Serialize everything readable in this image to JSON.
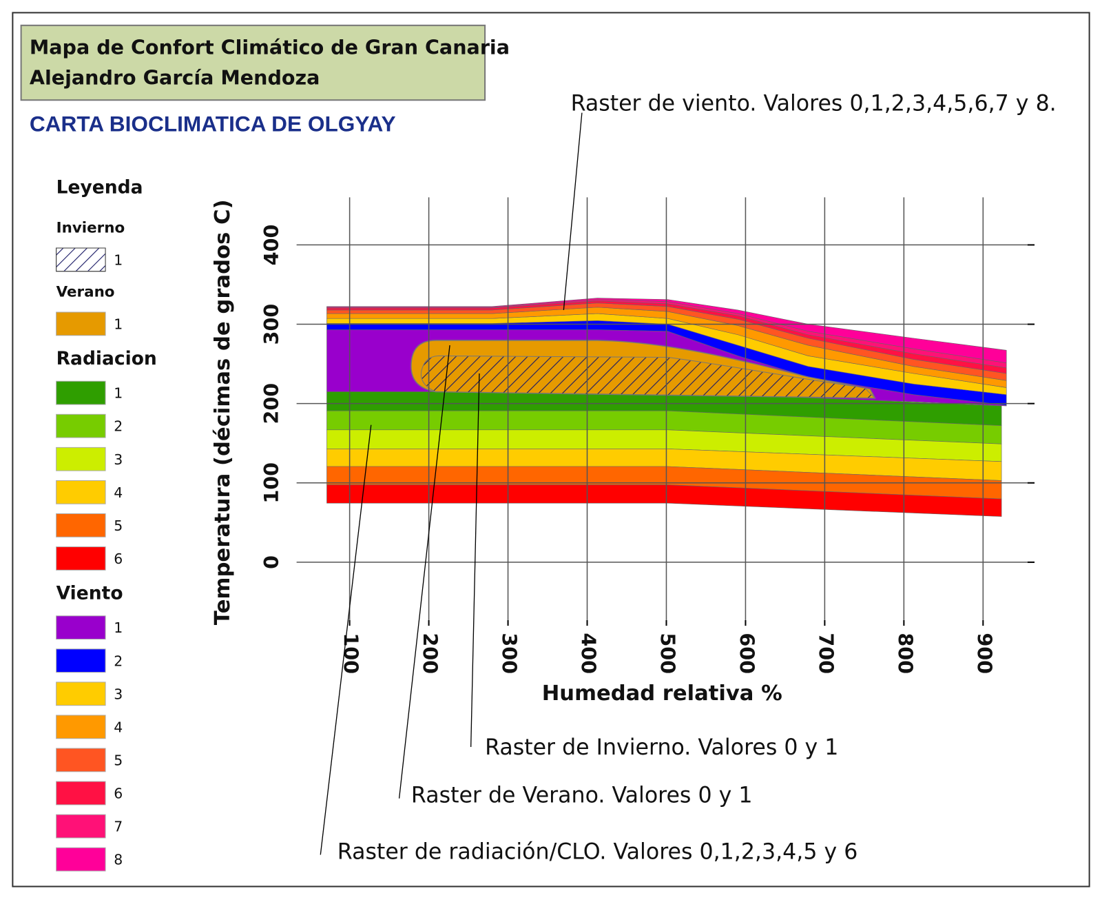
{
  "chart_data": {
    "type": "bioclimatic",
    "header": [
      "Mapa de Confort Climático de Gran Canaria",
      "Alejandro García Mendoza"
    ],
    "title": "CARTA BIOCLIMATICA DE OLGYAY",
    "x_label": "Humedad relativa %",
    "y_label": "Temperatura (décimas de grados C)",
    "xlim": [
      33,
      965
    ],
    "ylim": [
      -73,
      460
    ],
    "xticks": [
      100,
      200,
      300,
      400,
      500,
      600,
      700,
      800,
      900
    ],
    "yticks": [
      0,
      100,
      200,
      300,
      400
    ],
    "grid": true,
    "legend": {
      "title": "Leyenda",
      "groups": [
        {
          "name": "Invierno",
          "items": [
            {
              "label": "1",
              "color": "#1a1a66",
              "hatch": true
            }
          ]
        },
        {
          "name": "Verano",
          "items": [
            {
              "label": "1",
              "color": "#e69a00"
            }
          ]
        },
        {
          "name": "Radiacion",
          "items": [
            {
              "label": "1",
              "color": "#2f9e00"
            },
            {
              "label": "2",
              "color": "#77cc00"
            },
            {
              "label": "3",
              "color": "#ccee00"
            },
            {
              "label": "4",
              "color": "#ffcc00"
            },
            {
              "label": "5",
              "color": "#ff6600"
            },
            {
              "label": "6",
              "color": "#ff0000"
            }
          ]
        },
        {
          "name": "Viento",
          "items": [
            {
              "label": "1",
              "color": "#9900cc"
            },
            {
              "label": "2",
              "color": "#0000ff"
            },
            {
              "label": "3",
              "color": "#ffcc00"
            },
            {
              "label": "4",
              "color": "#ff9900"
            },
            {
              "label": "5",
              "color": "#ff5522"
            },
            {
              "label": "6",
              "color": "#ff1144"
            },
            {
              "label": "7",
              "color": "#ff1177"
            },
            {
              "label": "8",
              "color": "#ff0099"
            }
          ]
        }
      ]
    },
    "annotations": [
      "Raster de viento. Valores 0,1,2,3,4,5,6,7 y 8.",
      "Raster de Invierno. Valores 0 y 1",
      "Raster de Verano. Valores 0 y 1",
      "Raster de radiación/CLO. Valores 0,1,2,3,4,5 y 6"
    ]
  }
}
